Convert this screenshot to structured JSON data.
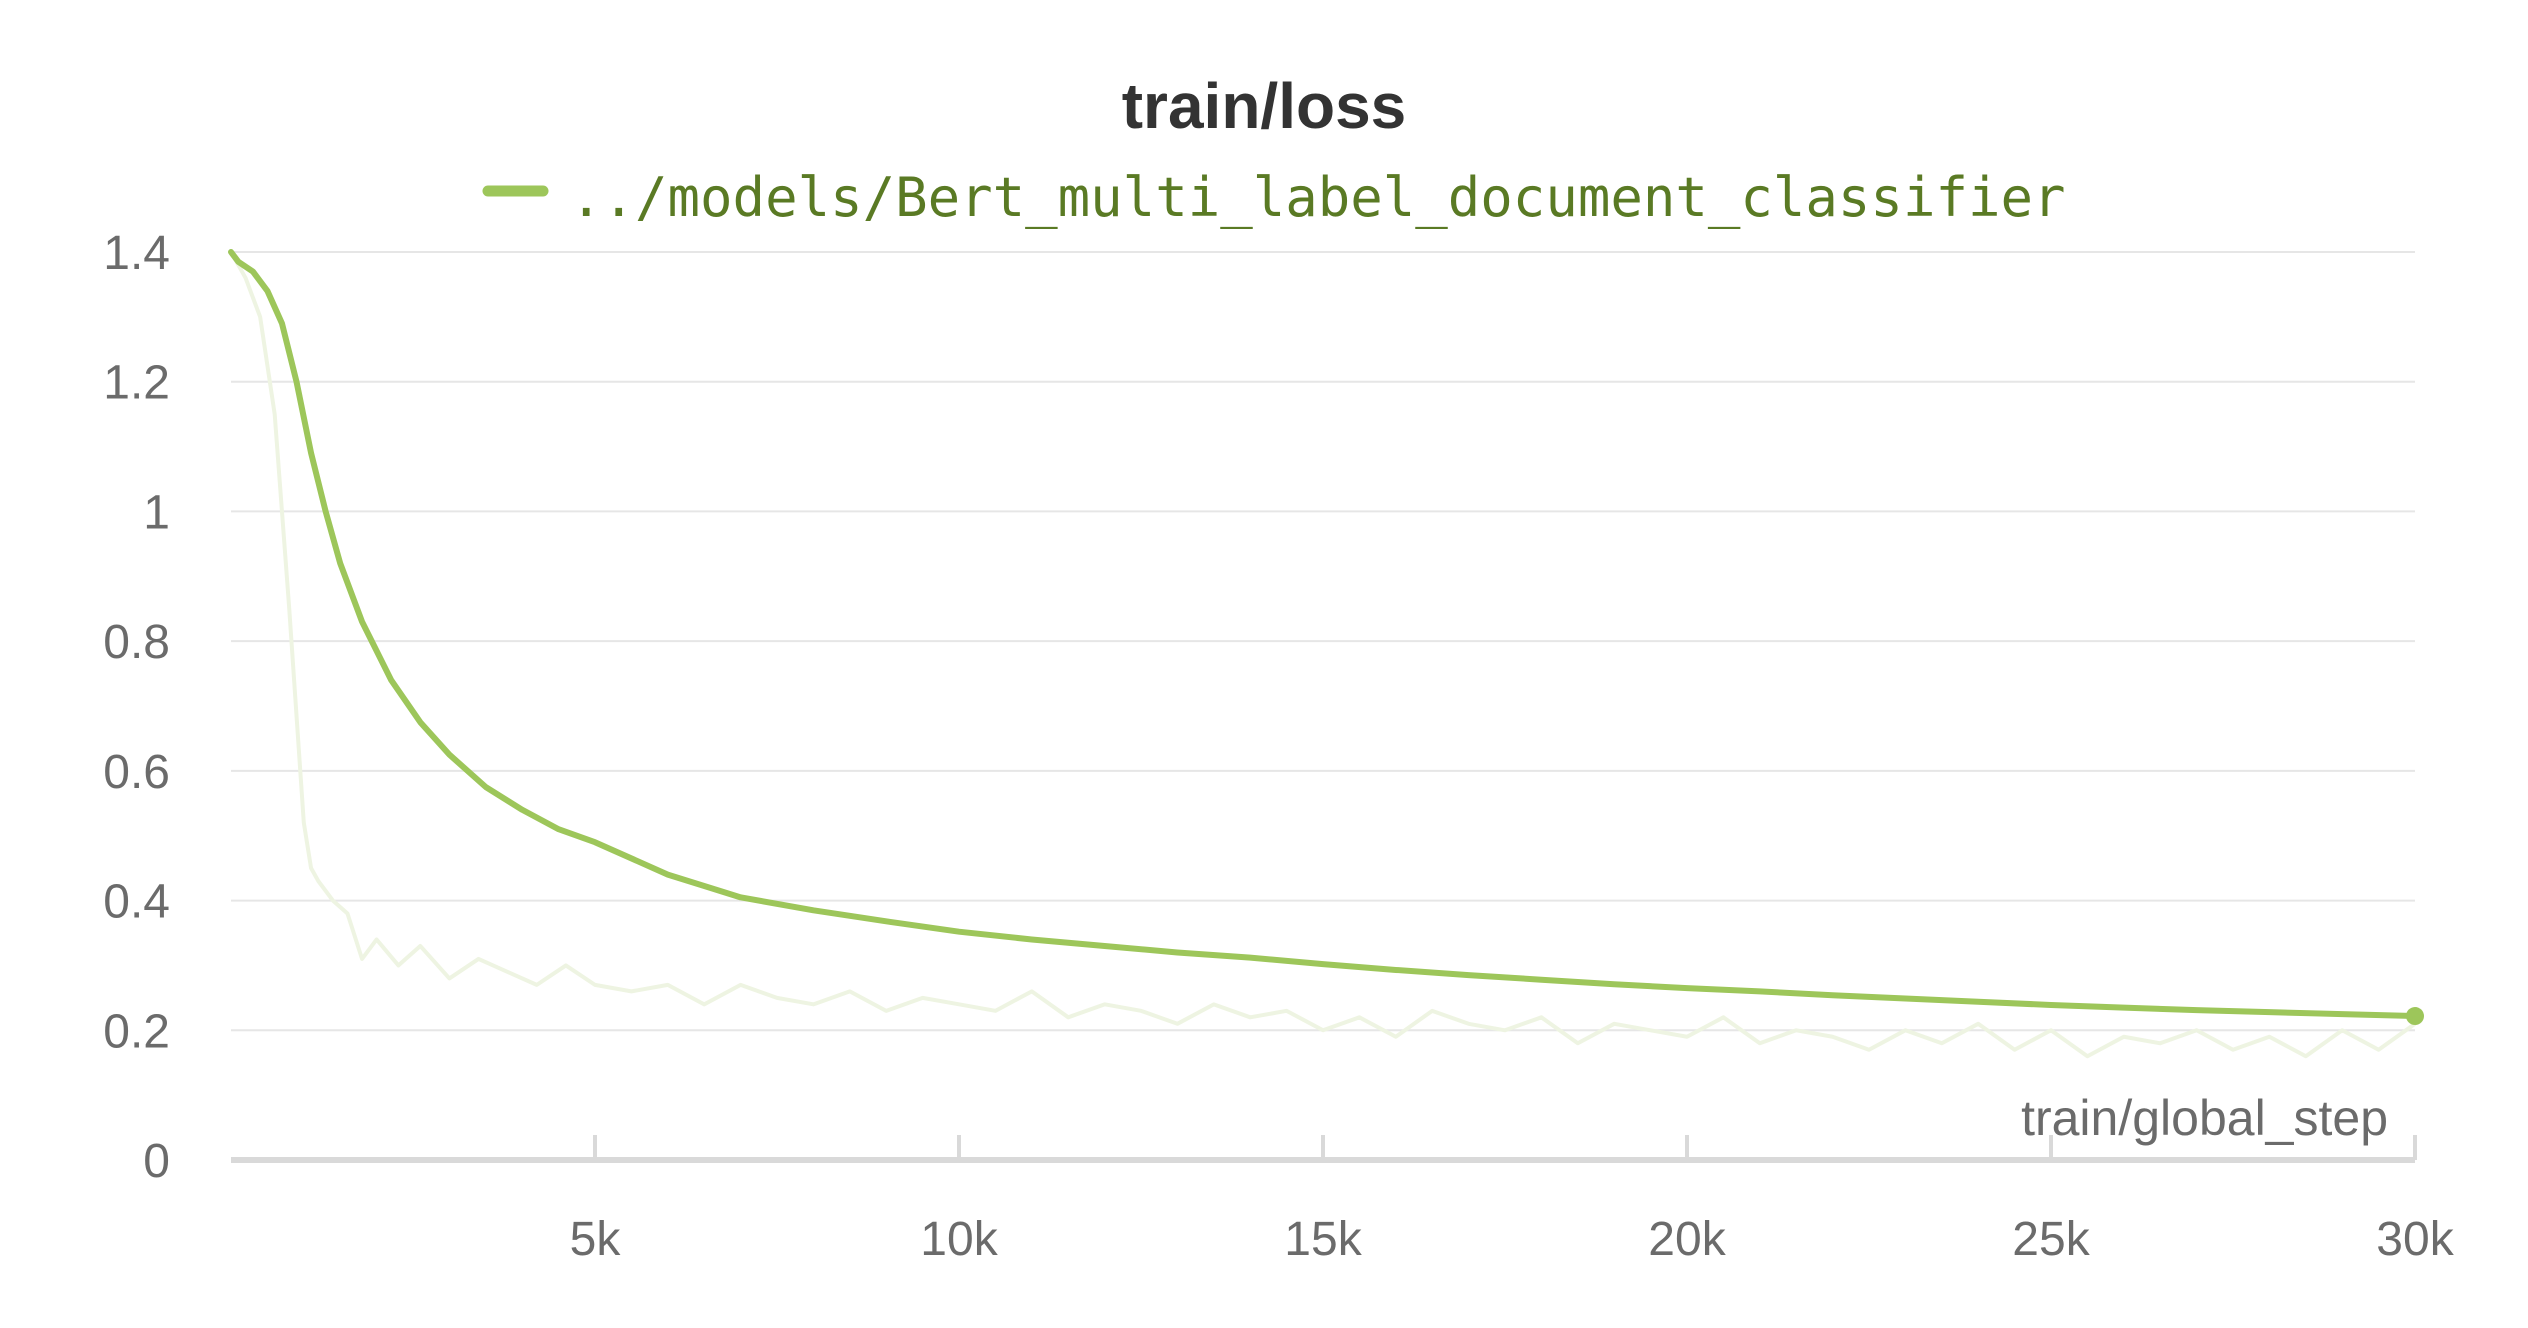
{
  "chart_data": {
    "type": "line",
    "title": "train/loss",
    "xlabel": "train/global_step",
    "ylabel": "",
    "xlim": [
      0,
      30000
    ],
    "ylim": [
      0,
      1.4
    ],
    "x_ticks": [
      5000,
      10000,
      15000,
      20000,
      25000,
      30000
    ],
    "x_tick_labels": [
      "5k",
      "10k",
      "15k",
      "20k",
      "25k",
      "30k"
    ],
    "y_ticks": [
      0,
      0.2,
      0.4,
      0.6,
      0.8,
      1,
      1.2,
      1.4
    ],
    "y_tick_labels": [
      "0",
      "0.2",
      "0.4",
      "0.6",
      "0.8",
      "1",
      "1.2",
      "1.4"
    ],
    "grid": true,
    "legend_position": "top-center",
    "colors": {
      "smoothed": "#9dc65a",
      "raw": "#eef4e2",
      "legend_text": "#5a7a24",
      "grid": "#e6e6e6",
      "axis": "#d9d9d9"
    },
    "series": [
      {
        "name": "../models/Bert_multi_label_document_classifier",
        "smoothed": true,
        "x": [
          0,
          100,
          300,
          500,
          700,
          900,
          1100,
          1300,
          1500,
          1800,
          2200,
          2600,
          3000,
          3500,
          4000,
          4500,
          5000,
          6000,
          7000,
          8000,
          9000,
          10000,
          11000,
          12000,
          13000,
          14000,
          15000,
          16000,
          17000,
          18000,
          19000,
          20000,
          21000,
          22000,
          23000,
          24000,
          25000,
          26000,
          27000,
          28000,
          29000,
          30000
        ],
        "y": [
          1.4,
          1.385,
          1.37,
          1.34,
          1.29,
          1.2,
          1.09,
          1.0,
          0.92,
          0.83,
          0.74,
          0.675,
          0.625,
          0.575,
          0.54,
          0.51,
          0.49,
          0.44,
          0.405,
          0.385,
          0.368,
          0.352,
          0.34,
          0.33,
          0.32,
          0.312,
          0.302,
          0.293,
          0.285,
          0.278,
          0.271,
          0.265,
          0.26,
          0.254,
          0.249,
          0.244,
          0.239,
          0.235,
          0.231,
          0.228,
          0.225,
          0.222
        ]
      },
      {
        "name": "../models/Bert_multi_label_document_classifier",
        "smoothed": false,
        "x": [
          0,
          200,
          400,
          600,
          800,
          1000,
          1100,
          1200,
          1400,
          1600,
          1800,
          2000,
          2300,
          2600,
          3000,
          3400,
          3800,
          4200,
          4600,
          5000,
          5500,
          6000,
          6500,
          7000,
          7500,
          8000,
          8500,
          9000,
          9500,
          10000,
          10500,
          11000,
          11500,
          12000,
          12500,
          13000,
          13500,
          14000,
          14500,
          15000,
          15500,
          16000,
          16500,
          17000,
          17500,
          18000,
          18500,
          19000,
          19500,
          20000,
          20500,
          21000,
          21500,
          22000,
          22500,
          23000,
          23500,
          24000,
          24500,
          25000,
          25500,
          26000,
          26500,
          27000,
          27500,
          28000,
          28500,
          29000,
          29500,
          30000
        ],
        "y": [
          1.4,
          1.36,
          1.3,
          1.15,
          0.85,
          0.52,
          0.45,
          0.43,
          0.4,
          0.38,
          0.31,
          0.34,
          0.3,
          0.33,
          0.28,
          0.31,
          0.29,
          0.27,
          0.3,
          0.27,
          0.26,
          0.27,
          0.24,
          0.27,
          0.25,
          0.24,
          0.26,
          0.23,
          0.25,
          0.24,
          0.23,
          0.26,
          0.22,
          0.24,
          0.23,
          0.21,
          0.24,
          0.22,
          0.23,
          0.2,
          0.22,
          0.19,
          0.23,
          0.21,
          0.2,
          0.22,
          0.18,
          0.21,
          0.2,
          0.19,
          0.22,
          0.18,
          0.2,
          0.19,
          0.17,
          0.2,
          0.18,
          0.21,
          0.17,
          0.2,
          0.16,
          0.19,
          0.18,
          0.2,
          0.17,
          0.19,
          0.16,
          0.2,
          0.17,
          0.21
        ]
      }
    ]
  }
}
